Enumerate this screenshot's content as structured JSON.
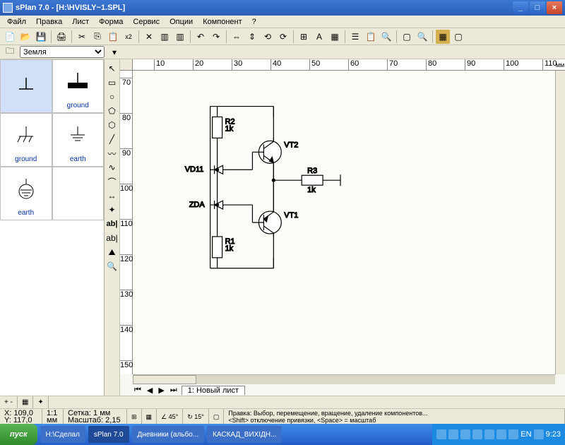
{
  "window": {
    "title": "sPlan 7.0 - [H:\\HVISLY~1.SPL]"
  },
  "menu": [
    "Файл",
    "Правка",
    "Лист",
    "Форма",
    "Сервис",
    "Опции",
    "Компонент",
    "?"
  ],
  "sidebar": {
    "category": "Земля",
    "symbols": [
      {
        "label": "",
        "selected": true
      },
      {
        "label": "ground",
        "selected": false
      },
      {
        "label": "ground",
        "selected": false
      },
      {
        "label": "earth",
        "selected": false
      },
      {
        "label": "earth",
        "selected": false
      },
      {
        "label": "",
        "selected": false
      }
    ]
  },
  "ruler": {
    "unit": "мм",
    "h_ticks": [
      10,
      20,
      30,
      40,
      50,
      60,
      70,
      80,
      90,
      100,
      110
    ],
    "v_ticks": [
      70,
      80,
      90,
      100,
      110,
      120,
      130,
      140,
      150
    ]
  },
  "circuit": {
    "components": {
      "R1": {
        "label": "R1",
        "value": "1k"
      },
      "R2": {
        "label": "R2",
        "value": "1k"
      },
      "R3": {
        "label": "R3",
        "value": "1k"
      },
      "VD1": {
        "label": "VD11"
      },
      "VD2": {
        "label": "ZDA"
      },
      "VT1": {
        "label": "VT1"
      },
      "VT2": {
        "label": "VT2"
      }
    },
    "stroke": "#000000",
    "stroke_width": 1.2,
    "font_size": 9,
    "font_family": "Arial"
  },
  "sheet": {
    "tab_label": "1: Новый лист"
  },
  "status1": {
    "toggles": [
      "+ -",
      "▦",
      "✦"
    ]
  },
  "status2": {
    "coords": {
      "x": "X: 109,0",
      "y": "Y: 117,0"
    },
    "ratio": "1:1",
    "unit": "мм",
    "grid": "Сетка: 1 мм",
    "scale": "Масштаб: 2,15",
    "angle1": "∠ 45°",
    "angle2": "↻ 15°",
    "help": "Правка: Выбор, перемещение, вращение, удаление компонентов...\n<Shift> отключение привязки, <Space> = масштаб"
  },
  "taskbar": {
    "start": "пуск",
    "tasks": [
      "H:\\Сделал",
      "sPlan 7.0",
      "Дневники (альбо...",
      "КАСКАД_ВИХІДН..."
    ],
    "active_task": 1,
    "lang": "EN",
    "time": "9:23"
  }
}
